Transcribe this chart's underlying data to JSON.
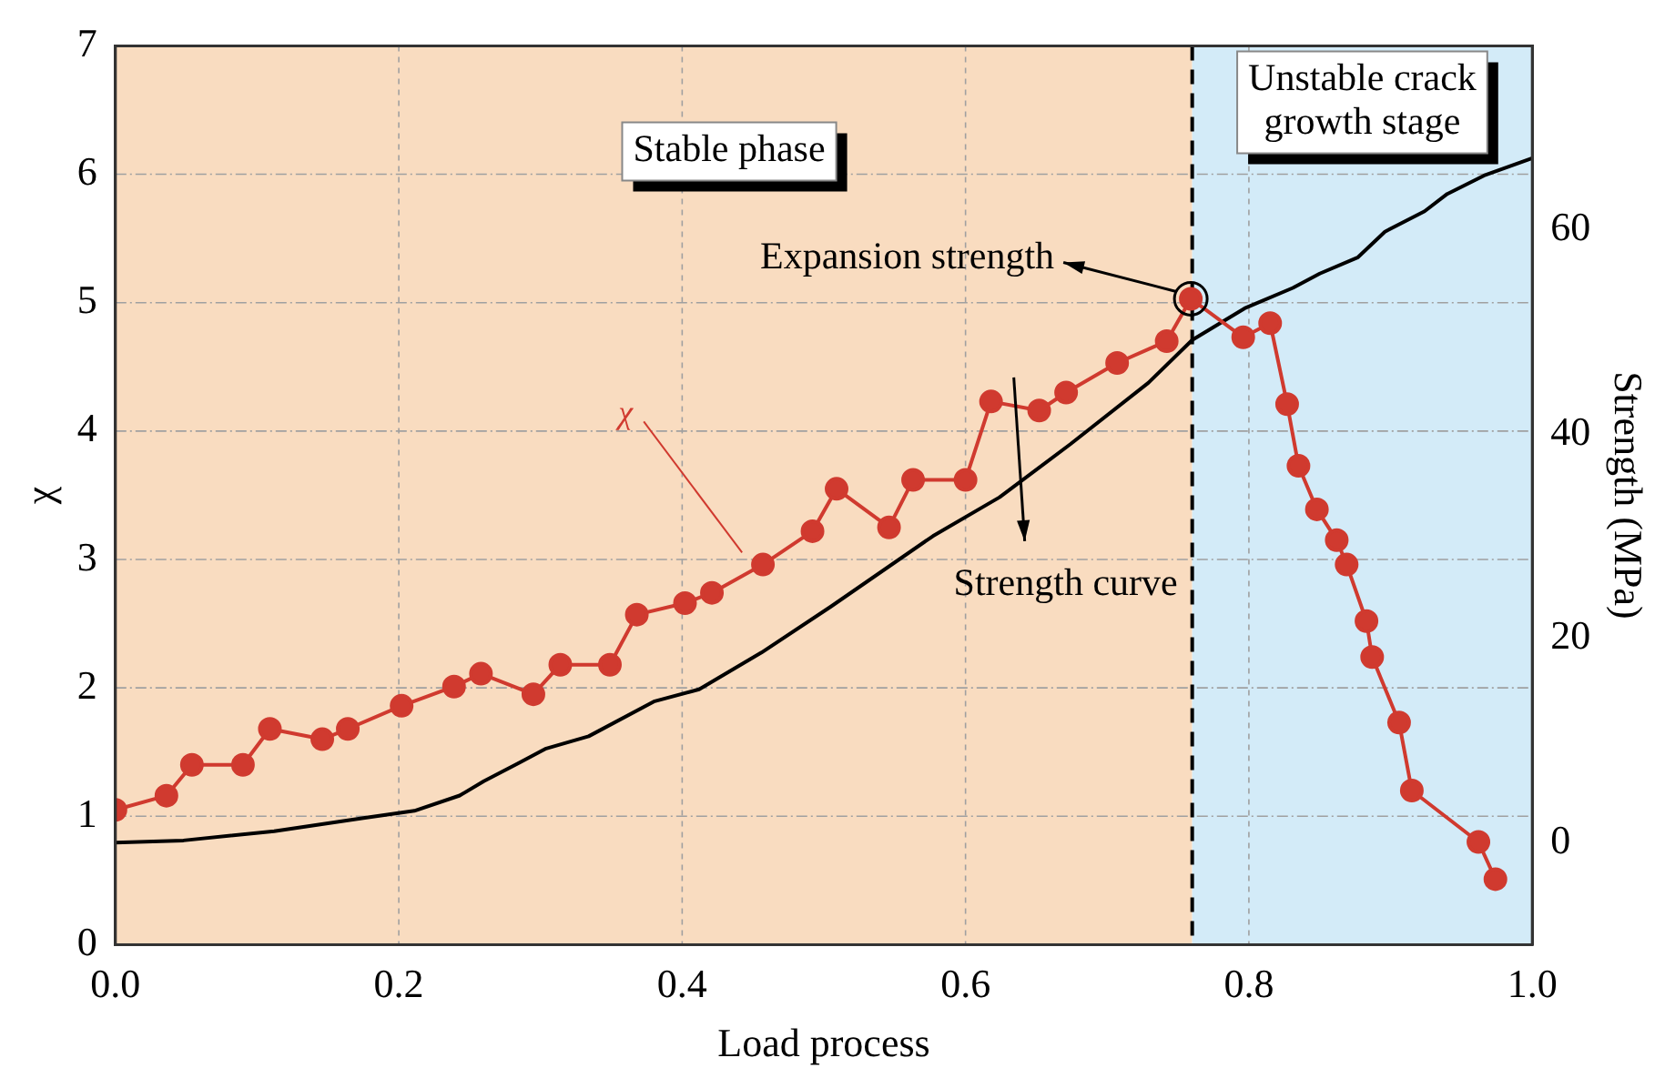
{
  "chart_data": {
    "type": "line",
    "xlabel": "Load process",
    "ylabel": "χ",
    "y2label": "Strength (MPa)",
    "xlim": [
      0,
      1
    ],
    "xticks": [
      {
        "value": 0,
        "label": "0.0"
      },
      0.2,
      0.4,
      0.6,
      0.8,
      {
        "value": 1,
        "label": "1.0"
      }
    ],
    "ylim": [
      0,
      7
    ],
    "yticks": [
      0,
      1,
      2,
      3,
      4,
      5,
      6,
      7
    ],
    "y2lim": [
      -10,
      78
    ],
    "y2ticks": [
      0,
      20,
      40,
      60
    ],
    "grid": true,
    "legend": false,
    "marker": "circle",
    "line_style": "solid",
    "series": [
      {
        "color": "#d03a2f",
        "axis": "y",
        "x": [
          0,
          0.036,
          0.054,
          0.09,
          0.109,
          0.146,
          0.164,
          0.202,
          0.239,
          0.258,
          0.295,
          0.314,
          0.349,
          0.368,
          0.402,
          0.421,
          0.457,
          0.492,
          0.509,
          0.546,
          0.563,
          0.6,
          0.618,
          0.652,
          0.671,
          0.707,
          0.742,
          0.759,
          0.796,
          0.815,
          0.827,
          0.835,
          0.848,
          0.862,
          0.869,
          0.883,
          0.887,
          0.906,
          0.915,
          0.962,
          0.974
        ],
        "values": [
          1.05,
          1.16,
          1.4,
          1.4,
          1.68,
          1.6,
          1.68,
          1.86,
          2.01,
          2.11,
          1.95,
          2.18,
          2.18,
          2.57,
          2.66,
          2.74,
          2.96,
          3.22,
          3.55,
          3.25,
          3.62,
          3.62,
          4.23,
          4.16,
          4.3,
          4.53,
          4.7,
          5.03,
          4.73,
          4.84,
          4.21,
          3.73,
          3.39,
          3.15,
          2.96,
          2.52,
          2.24,
          1.73,
          1.2,
          0.8,
          0.51
        ]
      },
      {
        "color": "#000000",
        "axis": "y2",
        "marker": "none",
        "x": [
          0,
          0.048,
          0.112,
          0.175,
          0.211,
          0.243,
          0.26,
          0.285,
          0.304,
          0.334,
          0.38,
          0.412,
          0.456,
          0.505,
          0.577,
          0.624,
          0.674,
          0.729,
          0.76,
          0.797,
          0.831,
          0.85,
          0.877,
          0.896,
          0.924,
          0.94,
          0.966,
          1.0
        ],
        "values": [
          0,
          0.2,
          1.1,
          2.4,
          3.1,
          4.6,
          6,
          7.8,
          9.2,
          10.4,
          13.8,
          15,
          18.6,
          23.1,
          30,
          33.8,
          39,
          45,
          49.2,
          52.3,
          54.3,
          55.7,
          57.3,
          59.8,
          61.8,
          63.5,
          65.3,
          67
        ]
      }
    ],
    "bands": [
      {
        "axis": "x",
        "from": 0,
        "to": 0.76,
        "label": "Stable phase",
        "color": "#f9dcc0"
      },
      {
        "axis": "x",
        "from": 0.76,
        "to": 1,
        "label": "Unstable crack growth stage",
        "color": "#d3ebf8"
      }
    ],
    "ref_lines": [
      {
        "axis": "x",
        "value": 0.76,
        "color": "#000000",
        "line_style": "dashed"
      }
    ],
    "annotations": [
      {
        "text": "Expansion strength",
        "x": 0.759,
        "y": 5.03
      },
      "χ",
      "Strength curve"
    ]
  }
}
